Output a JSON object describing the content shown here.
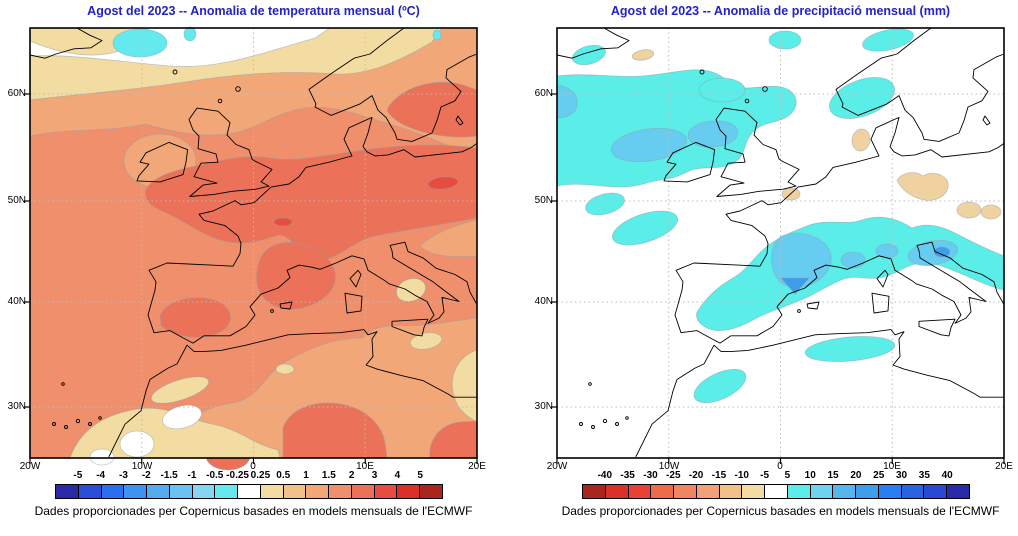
{
  "page": {
    "background": "#FFFFFF",
    "title_color": "#2222CC"
  },
  "panels": [
    {
      "id": "temperature-anomaly",
      "title": "Agost del 2023 -- Anomalia de temperatura mensual (ºC)",
      "caption": "Dades proporcionades per Copernicus basades en models mensuals de l'ECMWF",
      "y_ticks": [
        "60N",
        "50N",
        "40N",
        "30N"
      ],
      "x_ticks": [
        "20W",
        "10W",
        "0",
        "10E",
        "20E"
      ],
      "colorbar_labels": [
        "-5",
        "-4",
        "-3",
        "-2",
        "-1.5",
        "-1",
        "-0.5",
        "-0.25",
        "0.25",
        "0.5",
        "1",
        "1.5",
        "2",
        "3",
        "4",
        "5"
      ],
      "colorbar_colors": [
        "#2A2AA8",
        "#2A4FD6",
        "#2A6FF0",
        "#3D92F2",
        "#55ABEE",
        "#6BC1F2",
        "#86D5F3",
        "#63E9EE",
        "#FFFFFF",
        "#F2DCA2",
        "#F2C189",
        "#F1A778",
        "#EF8F6B",
        "#EB7258",
        "#E74C3E",
        "#DC3027",
        "#A8261E"
      ]
    },
    {
      "id": "precipitation-anomaly",
      "title": "Agost del 2023 -- Anomalia de precipitació mensual (mm)",
      "caption": "Dades proporcionades per Copernicus basades en models mensuals de l'ECMWF",
      "y_ticks": [
        "60N",
        "50N",
        "40N",
        "30N"
      ],
      "x_ticks": [
        "20W",
        "10W",
        "0",
        "10E",
        "20E"
      ],
      "colorbar_labels": [
        "-40",
        "-35",
        "-30",
        "-25",
        "-20",
        "-15",
        "-10",
        "-5",
        "5",
        "10",
        "15",
        "20",
        "25",
        "30",
        "35",
        "40"
      ],
      "colorbar_colors": [
        "#A8261E",
        "#DC3027",
        "#E74234",
        "#ED6B4A",
        "#EF8660",
        "#F1A077",
        "#F2C189",
        "#F2DCA2",
        "#FFFFFF",
        "#5BEDE8",
        "#6FD3F2",
        "#55B6EC",
        "#3E9EE9",
        "#2A7FF0",
        "#2A62E0",
        "#2A49D2",
        "#2A2AA8"
      ]
    }
  ],
  "colors": {
    "temp_base": "#EF8F6B",
    "temp_peach": "#F1A778",
    "temp_tan": "#F2DCA2",
    "temp_white": "#FFFFFF",
    "temp_cyan": "#63E9EE",
    "temp_dark": "#EB7258",
    "temp_red": "#E74C3E",
    "prec_base": "#FFFFFF",
    "prec_cyan": "#5BEDE8",
    "prec_blue1": "#66CCF0",
    "prec_blue2": "#3E9EE9",
    "prec_tan": "#F0D2A0",
    "coastline": "#000000",
    "grid": "#BBBBBB",
    "title": "#2222CC"
  },
  "chart_data": [
    {
      "type": "heatmap",
      "title": "Agost del 2023 -- Anomalia de temperatura mensual (ºC)",
      "variable": "monthly temperature anomaly",
      "units": "ºC",
      "xlabel": "longitude",
      "ylabel": "latitude",
      "x_ticks": [
        "20W",
        "10W",
        "0",
        "10E",
        "20E"
      ],
      "y_ticks": [
        "60N",
        "50N",
        "40N",
        "30N"
      ],
      "lon_range": [
        "20W",
        "20E"
      ],
      "lat_range": [
        "25N",
        "66N"
      ],
      "grid": true,
      "legend_position": "bottom",
      "levels": [
        -5,
        -4,
        -3,
        -2,
        -1.5,
        -1,
        -0.5,
        -0.25,
        0.25,
        0.5,
        1,
        1.5,
        2,
        3,
        4,
        5
      ],
      "palette": [
        "#2A2AA8",
        "#2A4FD6",
        "#2A6FF0",
        "#3D92F2",
        "#55ABEE",
        "#6BC1F2",
        "#86D5F3",
        "#63E9EE",
        "#FFFFFF",
        "#F2DCA2",
        "#F2C189",
        "#F1A778",
        "#EF8F6B",
        "#EB7258",
        "#E74C3E",
        "#DC3027",
        "#A8261E"
      ],
      "regions": [
        {
          "area": "dominant field: Atlantic, Iberia, France, Mediterranean",
          "value": "+1.5 to +2"
        },
        {
          "area": "band across central Europe ~46-53N, Sweden/Baltic, Balearic sea, Algeria",
          "value": "+2 to +3"
        },
        {
          "area": "small spots near 17E 51.5N and 2E 48N",
          "value": "+3 to +4"
        },
        {
          "area": "Ireland, Scotland fringe, Balkans wedge at east edge ~46N",
          "value": "+1 to +1.5"
        },
        {
          "area": "band ~57-61N across Norwegian Sea and Scandinavia",
          "value": "+0.25 to +1"
        },
        {
          "area": "band ~61-65N (white)",
          "value": "-0.25 to +0.25"
        },
        {
          "area": "small blob ~11W 65N (cyan)",
          "value": "-0.5 to -0.25"
        },
        {
          "area": "North Africa ~27-31N: pale tan band with small white patches",
          "value": "0 to +0.5"
        }
      ]
    },
    {
      "type": "heatmap",
      "title": "Agost del 2023 -- Anomalia de precipitació mensual (mm)",
      "variable": "monthly precipitation anomaly",
      "units": "mm",
      "xlabel": "longitude",
      "ylabel": "latitude",
      "x_ticks": [
        "20W",
        "10W",
        "0",
        "10E",
        "20E"
      ],
      "y_ticks": [
        "60N",
        "50N",
        "40N",
        "30N"
      ],
      "lon_range": [
        "20W",
        "20E"
      ],
      "lat_range": [
        "25N",
        "66N"
      ],
      "grid": true,
      "legend_position": "bottom",
      "levels": [
        -40,
        -35,
        -30,
        -25,
        -20,
        -15,
        -10,
        -5,
        5,
        10,
        15,
        20,
        25,
        30,
        35,
        40
      ],
      "palette": [
        "#A8261E",
        "#DC3027",
        "#E74234",
        "#ED6B4A",
        "#EF8660",
        "#F1A077",
        "#F2C189",
        "#F2DCA2",
        "#FFFFFF",
        "#5BEDE8",
        "#6FD3F2",
        "#55B6EC",
        "#3E9EE9",
        "#2A7FF0",
        "#2A62E0",
        "#2A49D2",
        "#2A2AA8"
      ],
      "regions": [
        {
          "area": "most of map (white)",
          "value": "-5 to +5"
        },
        {
          "area": "NE Atlantic west of Ireland/Scotland ~49-61N",
          "value": "+5 to +10"
        },
        {
          "area": "cores at west edge ~56-58N and over Scotland",
          "value": "+10 to +15"
        },
        {
          "area": "band France - Alps - N.Italy - Adriatic ~42-47N",
          "value": "+5 to +15"
        },
        {
          "area": "core over SW France ~0E 44N",
          "value": "+15 to +20"
        },
        {
          "area": "blobs: Norway coast, N of Scotland, near Iceland, NW Spain, Morocco ~6W 32N, Tunisia/Libya coast",
          "value": "+5 to +10"
        },
        {
          "area": "tan patches: Germany/Poland ~49-52N, W of Denmark, English Channel, ~12W 65N",
          "value": "-10 to -5"
        }
      ]
    }
  ]
}
